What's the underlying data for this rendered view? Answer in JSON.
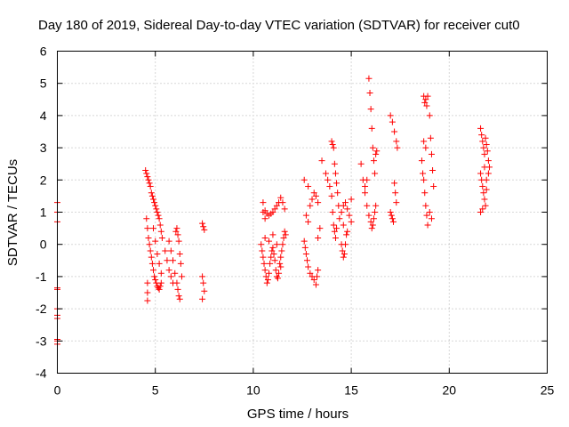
{
  "chart_data": {
    "type": "scatter",
    "title": "Day 180 of 2019, Sidereal Day-to-day VTEC variation (SDTVAR) for receiver cut0",
    "xlabel": "GPS time / hours",
    "ylabel": "SDTVAR / TECUs",
    "xlim": [
      0,
      25
    ],
    "ylim": [
      -4,
      6
    ],
    "xticks": [
      0,
      5,
      10,
      15,
      20,
      25
    ],
    "yticks": [
      -4,
      -3,
      -2,
      -1,
      0,
      1,
      2,
      3,
      4,
      5,
      6
    ],
    "grid": true,
    "marker": "plus",
    "series": [
      {
        "name": "SDTVAR",
        "color": "#ff0000",
        "points": [
          [
            0.0,
            1.3
          ],
          [
            0.0,
            1.0
          ],
          [
            0.0,
            0.7
          ],
          [
            0.0,
            -1.35
          ],
          [
            0.0,
            -1.4
          ],
          [
            0.0,
            -2.0
          ],
          [
            0.0,
            -2.2
          ],
          [
            0.0,
            -2.3
          ],
          [
            0.0,
            -2.95
          ],
          [
            0.0,
            -3.0
          ],
          [
            0.0,
            -3.1
          ],
          [
            4.5,
            2.3
          ],
          [
            4.55,
            2.2
          ],
          [
            4.6,
            2.1
          ],
          [
            4.65,
            2.0
          ],
          [
            4.7,
            1.9
          ],
          [
            4.75,
            1.8
          ],
          [
            4.8,
            1.6
          ],
          [
            4.85,
            1.5
          ],
          [
            4.9,
            1.4
          ],
          [
            4.95,
            1.3
          ],
          [
            5.0,
            1.2
          ],
          [
            5.05,
            1.1
          ],
          [
            5.1,
            1.0
          ],
          [
            5.15,
            0.9
          ],
          [
            5.2,
            0.8
          ],
          [
            5.25,
            0.6
          ],
          [
            5.3,
            0.4
          ],
          [
            5.35,
            0.2
          ],
          [
            4.55,
            0.8
          ],
          [
            4.6,
            0.5
          ],
          [
            4.65,
            0.2
          ],
          [
            4.7,
            0.0
          ],
          [
            4.75,
            -0.2
          ],
          [
            4.8,
            -0.4
          ],
          [
            4.85,
            -0.6
          ],
          [
            4.9,
            -0.8
          ],
          [
            4.95,
            -1.0
          ],
          [
            5.0,
            -1.1
          ],
          [
            5.05,
            -1.2
          ],
          [
            5.1,
            -1.3
          ],
          [
            5.15,
            -1.35
          ],
          [
            5.2,
            -1.4
          ],
          [
            5.25,
            -1.3
          ],
          [
            5.3,
            -1.2
          ],
          [
            4.6,
            -1.2
          ],
          [
            4.6,
            -1.5
          ],
          [
            4.6,
            -1.75
          ],
          [
            4.9,
            0.5
          ],
          [
            5.0,
            0.1
          ],
          [
            5.1,
            -0.3
          ],
          [
            5.2,
            -0.6
          ],
          [
            5.3,
            -0.9
          ],
          [
            5.5,
            -0.2
          ],
          [
            5.6,
            -0.5
          ],
          [
            5.7,
            -0.8
          ],
          [
            5.8,
            -1.0
          ],
          [
            5.9,
            -1.2
          ],
          [
            5.7,
            0.1
          ],
          [
            5.8,
            -0.2
          ],
          [
            5.9,
            -0.5
          ],
          [
            6.0,
            -0.9
          ],
          [
            6.1,
            -1.2
          ],
          [
            6.15,
            -1.4
          ],
          [
            6.2,
            -1.6
          ],
          [
            6.25,
            -1.7
          ],
          [
            6.05,
            0.4
          ],
          [
            6.1,
            0.5
          ],
          [
            6.15,
            0.3
          ],
          [
            6.2,
            0.1
          ],
          [
            6.25,
            -0.3
          ],
          [
            6.3,
            -0.6
          ],
          [
            6.35,
            -1.0
          ],
          [
            7.4,
            0.65
          ],
          [
            7.45,
            0.55
          ],
          [
            7.5,
            0.45
          ],
          [
            7.4,
            -1.0
          ],
          [
            7.45,
            -1.2
          ],
          [
            7.5,
            -1.45
          ],
          [
            7.4,
            -1.7
          ],
          [
            10.5,
            1.0
          ],
          [
            10.6,
            1.05
          ],
          [
            10.7,
            0.95
          ],
          [
            10.8,
            0.9
          ],
          [
            10.9,
            0.95
          ],
          [
            11.0,
            1.0
          ],
          [
            11.1,
            1.1
          ],
          [
            11.2,
            1.2
          ],
          [
            11.3,
            1.3
          ],
          [
            11.4,
            1.45
          ],
          [
            11.5,
            1.3
          ],
          [
            11.6,
            1.1
          ],
          [
            10.5,
            1.3
          ],
          [
            10.6,
            0.8
          ],
          [
            10.4,
            0.0
          ],
          [
            10.45,
            -0.2
          ],
          [
            10.5,
            -0.4
          ],
          [
            10.55,
            -0.6
          ],
          [
            10.6,
            -0.8
          ],
          [
            10.65,
            -1.0
          ],
          [
            10.7,
            -1.2
          ],
          [
            10.75,
            -1.1
          ],
          [
            10.8,
            -0.9
          ],
          [
            10.85,
            -0.6
          ],
          [
            10.9,
            -0.4
          ],
          [
            10.95,
            -0.2
          ],
          [
            11.0,
            -0.1
          ],
          [
            11.05,
            -0.3
          ],
          [
            11.1,
            -0.5
          ],
          [
            11.15,
            -0.8
          ],
          [
            11.2,
            -1.0
          ],
          [
            11.25,
            -1.05
          ],
          [
            11.3,
            -0.9
          ],
          [
            11.35,
            -0.6
          ],
          [
            11.4,
            -0.4
          ],
          [
            11.45,
            -0.2
          ],
          [
            11.5,
            0.0
          ],
          [
            11.55,
            0.2
          ],
          [
            11.6,
            0.4
          ],
          [
            11.65,
            0.3
          ],
          [
            10.6,
            0.2
          ],
          [
            10.8,
            0.1
          ],
          [
            11.0,
            0.3
          ],
          [
            11.2,
            0.0
          ],
          [
            11.4,
            -0.7
          ],
          [
            12.6,
            0.1
          ],
          [
            12.65,
            -0.1
          ],
          [
            12.7,
            -0.3
          ],
          [
            12.75,
            -0.5
          ],
          [
            12.8,
            -0.7
          ],
          [
            12.9,
            -0.9
          ],
          [
            13.0,
            -1.0
          ],
          [
            13.1,
            -1.1
          ],
          [
            13.2,
            -1.25
          ],
          [
            13.25,
            -1.0
          ],
          [
            13.3,
            -0.8
          ],
          [
            12.7,
            0.9
          ],
          [
            12.8,
            0.7
          ],
          [
            12.9,
            1.2
          ],
          [
            13.0,
            1.4
          ],
          [
            13.1,
            1.6
          ],
          [
            13.2,
            1.5
          ],
          [
            13.3,
            1.3
          ],
          [
            12.6,
            2.0
          ],
          [
            12.8,
            1.8
          ],
          [
            13.5,
            2.6
          ],
          [
            13.3,
            0.2
          ],
          [
            13.4,
            0.5
          ],
          [
            13.7,
            2.2
          ],
          [
            13.8,
            2.0
          ],
          [
            13.9,
            1.8
          ],
          [
            14.0,
            3.2
          ],
          [
            14.05,
            3.1
          ],
          [
            14.1,
            3.0
          ],
          [
            14.15,
            2.5
          ],
          [
            14.2,
            2.2
          ],
          [
            14.25,
            1.9
          ],
          [
            14.3,
            1.6
          ],
          [
            14.35,
            1.2
          ],
          [
            14.4,
            0.8
          ],
          [
            14.0,
            1.5
          ],
          [
            14.05,
            1.0
          ],
          [
            14.1,
            0.6
          ],
          [
            14.15,
            0.4
          ],
          [
            14.2,
            0.2
          ],
          [
            14.25,
            0.5
          ],
          [
            14.5,
            0.0
          ],
          [
            14.55,
            -0.2
          ],
          [
            14.6,
            -0.4
          ],
          [
            14.65,
            -0.3
          ],
          [
            14.7,
            0.0
          ],
          [
            14.75,
            0.3
          ],
          [
            14.5,
            1.0
          ],
          [
            14.6,
            1.2
          ],
          [
            14.7,
            1.3
          ],
          [
            14.8,
            1.1
          ],
          [
            14.9,
            0.9
          ],
          [
            15.0,
            0.7
          ],
          [
            14.6,
            0.6
          ],
          [
            14.8,
            0.4
          ],
          [
            15.0,
            1.4
          ],
          [
            15.5,
            2.5
          ],
          [
            15.6,
            2.0
          ],
          [
            15.7,
            1.6
          ],
          [
            15.8,
            1.2
          ],
          [
            15.9,
            0.9
          ],
          [
            16.0,
            0.7
          ],
          [
            16.05,
            0.5
          ],
          [
            16.1,
            0.6
          ],
          [
            16.15,
            0.8
          ],
          [
            16.2,
            1.0
          ],
          [
            16.25,
            1.2
          ],
          [
            15.9,
            5.15
          ],
          [
            15.95,
            4.7
          ],
          [
            16.0,
            4.2
          ],
          [
            16.05,
            3.6
          ],
          [
            16.1,
            3.0
          ],
          [
            16.15,
            2.6
          ],
          [
            16.2,
            2.2
          ],
          [
            16.25,
            2.8
          ],
          [
            16.3,
            2.9
          ],
          [
            15.8,
            2.0
          ],
          [
            15.7,
            1.8
          ],
          [
            17.0,
            4.0
          ],
          [
            17.1,
            3.8
          ],
          [
            17.2,
            3.5
          ],
          [
            17.3,
            3.2
          ],
          [
            17.35,
            3.0
          ],
          [
            17.0,
            1.0
          ],
          [
            17.05,
            0.9
          ],
          [
            17.1,
            0.8
          ],
          [
            17.15,
            0.7
          ],
          [
            17.2,
            1.9
          ],
          [
            17.25,
            1.6
          ],
          [
            17.3,
            1.3
          ],
          [
            18.7,
            4.6
          ],
          [
            18.75,
            4.4
          ],
          [
            18.8,
            4.5
          ],
          [
            18.85,
            4.3
          ],
          [
            18.9,
            4.6
          ],
          [
            19.0,
            4.0
          ],
          [
            19.05,
            3.3
          ],
          [
            19.1,
            2.8
          ],
          [
            19.15,
            2.3
          ],
          [
            19.2,
            1.8
          ],
          [
            18.6,
            2.6
          ],
          [
            18.65,
            2.2
          ],
          [
            18.7,
            2.0
          ],
          [
            18.75,
            1.6
          ],
          [
            18.8,
            1.2
          ],
          [
            18.85,
            0.9
          ],
          [
            18.9,
            0.6
          ],
          [
            18.7,
            3.2
          ],
          [
            18.8,
            3.0
          ],
          [
            19.0,
            1.0
          ],
          [
            19.1,
            0.8
          ],
          [
            21.6,
            3.6
          ],
          [
            21.65,
            3.4
          ],
          [
            21.7,
            3.2
          ],
          [
            21.75,
            3.0
          ],
          [
            21.8,
            2.8
          ],
          [
            21.85,
            3.3
          ],
          [
            21.9,
            3.1
          ],
          [
            21.95,
            2.9
          ],
          [
            22.0,
            2.6
          ],
          [
            22.05,
            2.4
          ],
          [
            21.6,
            2.2
          ],
          [
            21.65,
            2.0
          ],
          [
            21.7,
            1.8
          ],
          [
            21.75,
            1.6
          ],
          [
            21.8,
            1.4
          ],
          [
            21.85,
            1.2
          ],
          [
            21.6,
            1.0
          ],
          [
            21.7,
            1.1
          ],
          [
            21.9,
            2.0
          ],
          [
            22.0,
            2.2
          ],
          [
            21.8,
            2.4
          ],
          [
            21.9,
            1.7
          ]
        ]
      }
    ]
  }
}
